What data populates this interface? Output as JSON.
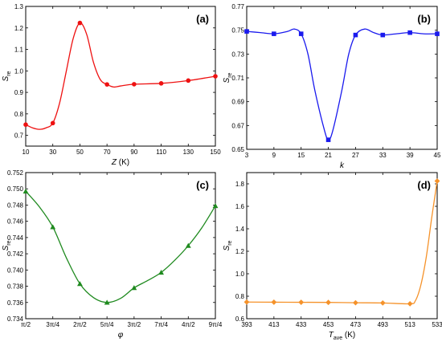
{
  "chart_data": [
    {
      "type": "line",
      "panel_label": "(a)",
      "ylabel_main": "S",
      "ylabel_sub": "re",
      "xlabel_main": "Z",
      "xlabel_sub": "",
      "xlabel_unit": " (K)",
      "color": "#ee1111",
      "marker": "circle",
      "xlim": [
        10,
        150
      ],
      "ylim": [
        0.65,
        1.3
      ],
      "xticks": [
        10,
        30,
        50,
        70,
        90,
        110,
        130,
        150
      ],
      "xtick_labels": [
        "10",
        "30",
        "50",
        "70",
        "90",
        "110",
        "130",
        "150"
      ],
      "yticks": [
        0.7,
        0.8,
        0.9,
        1.0,
        1.1,
        1.2,
        1.3
      ],
      "ytick_labels": [
        "0.7",
        "0.8",
        "0.9",
        "1.0",
        "1.1",
        "1.2",
        "1.3"
      ],
      "points": [
        [
          10,
          0.75
        ],
        [
          30,
          0.757
        ],
        [
          50,
          1.223
        ],
        [
          70,
          0.937
        ],
        [
          90,
          0.938
        ],
        [
          110,
          0.942
        ],
        [
          130,
          0.955
        ],
        [
          150,
          0.975
        ]
      ],
      "curve": [
        [
          10,
          0.75
        ],
        [
          15,
          0.735
        ],
        [
          20,
          0.728
        ],
        [
          25,
          0.735
        ],
        [
          30,
          0.757
        ],
        [
          35,
          0.85
        ],
        [
          40,
          1.0
        ],
        [
          45,
          1.15
        ],
        [
          50,
          1.223
        ],
        [
          55,
          1.17
        ],
        [
          60,
          1.04
        ],
        [
          65,
          0.96
        ],
        [
          70,
          0.937
        ],
        [
          75,
          0.925
        ],
        [
          80,
          0.93
        ],
        [
          90,
          0.938
        ],
        [
          110,
          0.942
        ],
        [
          130,
          0.955
        ],
        [
          150,
          0.975
        ]
      ]
    },
    {
      "type": "line",
      "panel_label": "(b)",
      "ylabel_main": "S",
      "ylabel_sub": "re",
      "xlabel_main": "k",
      "xlabel_sub": "",
      "xlabel_unit": "",
      "color": "#1a1aee",
      "marker": "square",
      "xlim": [
        3,
        45
      ],
      "ylim": [
        0.65,
        0.77
      ],
      "xticks": [
        3,
        9,
        15,
        21,
        27,
        33,
        39,
        45
      ],
      "xtick_labels": [
        "3",
        "9",
        "15",
        "21",
        "27",
        "33",
        "39",
        "45"
      ],
      "yticks": [
        0.65,
        0.67,
        0.69,
        0.71,
        0.73,
        0.75,
        0.77
      ],
      "ytick_labels": [
        "0.65",
        "0.67",
        "0.69",
        "0.71",
        "0.73",
        "0.75",
        "0.77"
      ],
      "points": [
        [
          3,
          0.749
        ],
        [
          9,
          0.747
        ],
        [
          15,
          0.747
        ],
        [
          21,
          0.658
        ],
        [
          27,
          0.746
        ],
        [
          33,
          0.746
        ],
        [
          39,
          0.748
        ],
        [
          45,
          0.747
        ]
      ],
      "curve": [
        [
          3,
          0.749
        ],
        [
          6,
          0.748
        ],
        [
          9,
          0.747
        ],
        [
          12,
          0.749
        ],
        [
          13.5,
          0.751
        ],
        [
          15,
          0.747
        ],
        [
          16.5,
          0.73
        ],
        [
          18,
          0.7
        ],
        [
          20,
          0.668
        ],
        [
          21,
          0.658
        ],
        [
          22,
          0.666
        ],
        [
          24,
          0.7
        ],
        [
          25.5,
          0.73
        ],
        [
          27,
          0.746
        ],
        [
          29,
          0.751
        ],
        [
          31,
          0.748
        ],
        [
          33,
          0.746
        ],
        [
          36,
          0.747
        ],
        [
          39,
          0.748
        ],
        [
          42,
          0.747
        ],
        [
          45,
          0.747
        ]
      ]
    },
    {
      "type": "line",
      "panel_label": "(c)",
      "ylabel_main": "S",
      "ylabel_sub": "re",
      "xlabel_main": "φ",
      "xlabel_sub": "",
      "xlabel_unit": "",
      "color": "#1f8a1f",
      "marker": "triangle",
      "xlim": [
        0,
        7
      ],
      "ylim": [
        0.734,
        0.752
      ],
      "xticks": [
        0,
        1,
        2,
        3,
        4,
        5,
        6,
        7
      ],
      "xtick_labels": [
        "π/2",
        "3π/4",
        "2π/2",
        "5π/4",
        "3π/2",
        "7π/4",
        "4π/2",
        "9π/4"
      ],
      "yticks": [
        0.734,
        0.736,
        0.738,
        0.74,
        0.742,
        0.744,
        0.746,
        0.748,
        0.75,
        0.752
      ],
      "ytick_labels": [
        "0.734",
        "0.736",
        "0.738",
        "0.740",
        "0.742",
        "0.744",
        "0.746",
        "0.748",
        "0.750",
        "0.752"
      ],
      "points": [
        [
          0,
          0.7497
        ],
        [
          1,
          0.7453
        ],
        [
          2,
          0.7383
        ],
        [
          3,
          0.736
        ],
        [
          4,
          0.7378
        ],
        [
          5,
          0.7397
        ],
        [
          6,
          0.743
        ],
        [
          7,
          0.7479
        ]
      ],
      "curve": [
        [
          0,
          0.7497
        ],
        [
          0.5,
          0.7478
        ],
        [
          1,
          0.7453
        ],
        [
          1.5,
          0.7415
        ],
        [
          2,
          0.7383
        ],
        [
          2.5,
          0.7366
        ],
        [
          3,
          0.736
        ],
        [
          3.5,
          0.7365
        ],
        [
          4,
          0.7378
        ],
        [
          4.5,
          0.7387
        ],
        [
          5,
          0.7397
        ],
        [
          5.5,
          0.7412
        ],
        [
          6,
          0.743
        ],
        [
          6.5,
          0.7452
        ],
        [
          7,
          0.7479
        ]
      ]
    },
    {
      "type": "line",
      "panel_label": "(d)",
      "ylabel_main": "S",
      "ylabel_sub": "re",
      "xlabel_main": "T",
      "xlabel_sub": "ave",
      "xlabel_unit": " (K)",
      "color": "#f5922a",
      "marker": "diamond",
      "xlim": [
        393,
        533
      ],
      "ylim": [
        0.6,
        1.9
      ],
      "xticks": [
        393,
        413,
        433,
        453,
        473,
        493,
        513,
        533
      ],
      "xtick_labels": [
        "393",
        "413",
        "433",
        "453",
        "473",
        "493",
        "513",
        "533"
      ],
      "yticks": [
        0.6,
        0.8,
        1.0,
        1.2,
        1.4,
        1.6,
        1.8
      ],
      "ytick_labels": [
        "0.6",
        "0.8",
        "1.0",
        "1.2",
        "1.4",
        "1.6",
        "1.8"
      ],
      "points": [
        [
          393,
          0.748
        ],
        [
          413,
          0.747
        ],
        [
          433,
          0.746
        ],
        [
          453,
          0.745
        ],
        [
          473,
          0.742
        ],
        [
          493,
          0.74
        ],
        [
          513,
          0.733
        ],
        [
          533,
          1.825
        ]
      ],
      "curve": [
        [
          393,
          0.748
        ],
        [
          413,
          0.747
        ],
        [
          433,
          0.746
        ],
        [
          453,
          0.745
        ],
        [
          473,
          0.742
        ],
        [
          493,
          0.74
        ],
        [
          513,
          0.733
        ],
        [
          517,
          0.76
        ],
        [
          521,
          0.9
        ],
        [
          525,
          1.15
        ],
        [
          529,
          1.5
        ],
        [
          533,
          1.825
        ]
      ]
    }
  ]
}
